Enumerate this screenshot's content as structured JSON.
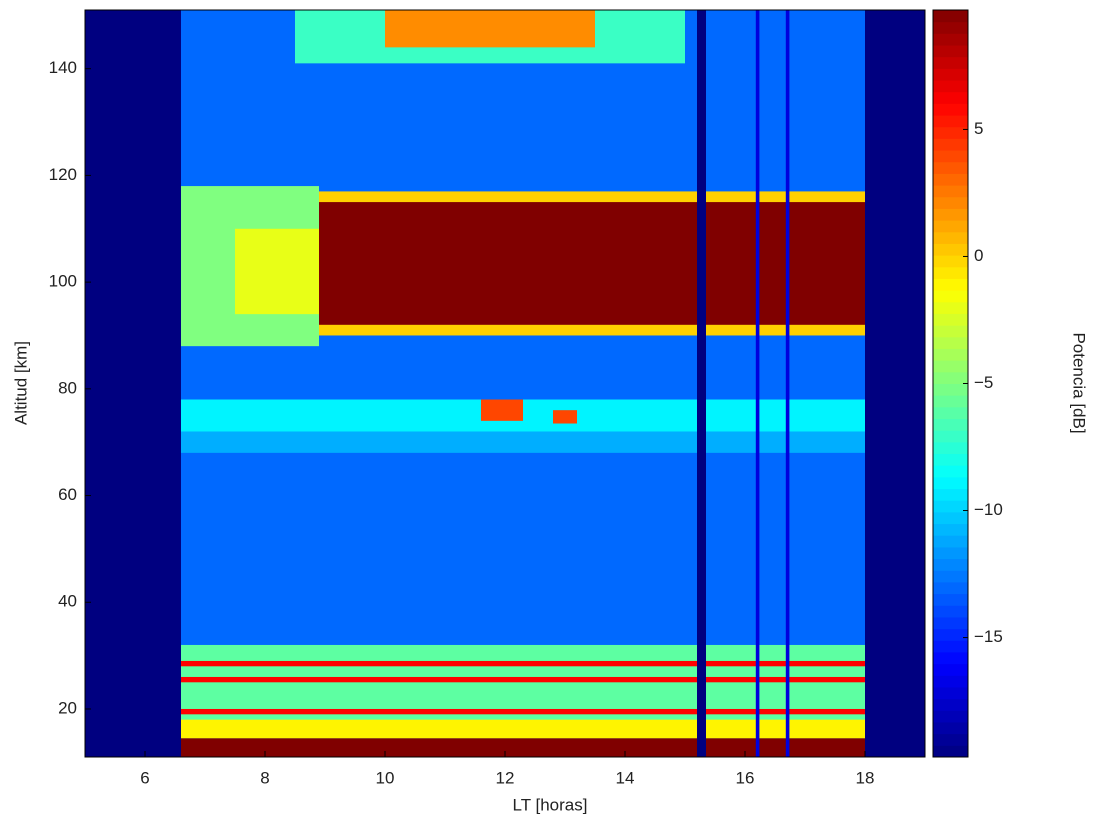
{
  "chart_data": {
    "type": "heatmap",
    "xlabel": "LT [horas]",
    "ylabel": "Altitud [km]",
    "colorbar_label": "Potencia [dB]",
    "xlim": [
      5,
      19
    ],
    "ylim": [
      11,
      151
    ],
    "xticks": [
      6,
      8,
      10,
      12,
      14,
      16,
      18
    ],
    "yticks": [
      20,
      40,
      60,
      80,
      100,
      120,
      140
    ],
    "clim": [
      -19.7,
      9.7
    ],
    "cticks": [
      {
        "value": -15,
        "label": "−15"
      },
      {
        "value": -10,
        "label": "−10"
      },
      {
        "value": -5,
        "label": "−5"
      },
      0,
      5
    ],
    "colormap": "jet",
    "cells": [
      {
        "x": [
          5,
          19
        ],
        "y": [
          11,
          151
        ],
        "value": -19.7
      },
      {
        "x": [
          6.6,
          18
        ],
        "y": [
          11,
          151
        ],
        "value": -13
      },
      {
        "x": [
          8.5,
          15
        ],
        "y": [
          141,
          151
        ],
        "value": -7
      },
      {
        "x": [
          10,
          13.5
        ],
        "y": [
          144,
          151
        ],
        "value": 2
      },
      {
        "x": [
          6.6,
          8.9
        ],
        "y": [
          88,
          118
        ],
        "value": -5
      },
      {
        "x": [
          7.5,
          8.9
        ],
        "y": [
          94,
          110
        ],
        "value": -2
      },
      {
        "x": [
          8.9,
          18
        ],
        "y": [
          90,
          117
        ],
        "value": 0
      },
      {
        "x": [
          8.9,
          18
        ],
        "y": [
          92,
          115
        ],
        "value": 9.7
      },
      {
        "x": [
          6.6,
          18
        ],
        "y": [
          72,
          78
        ],
        "value": -9
      },
      {
        "x": [
          6.6,
          18
        ],
        "y": [
          68,
          72
        ],
        "value": -11
      },
      {
        "x": [
          11.6,
          12.3
        ],
        "y": [
          74,
          78
        ],
        "value": 4
      },
      {
        "x": [
          12.8,
          13.2
        ],
        "y": [
          73.5,
          76
        ],
        "value": 4
      },
      {
        "x": [
          6.6,
          18
        ],
        "y": [
          14.5,
          32
        ],
        "value": -6
      },
      {
        "x": [
          6.6,
          18
        ],
        "y": [
          14.5,
          18
        ],
        "value": -1
      },
      {
        "x": [
          6.6,
          18
        ],
        "y": [
          19,
          20
        ],
        "value": 6
      },
      {
        "x": [
          6.6,
          18
        ],
        "y": [
          25,
          26
        ],
        "value": 6
      },
      {
        "x": [
          6.6,
          18
        ],
        "y": [
          28,
          29
        ],
        "value": 6
      },
      {
        "x": [
          6.6,
          18
        ],
        "y": [
          11,
          14.5
        ],
        "value": 9.7
      },
      {
        "x": [
          15.2,
          15.35
        ],
        "y": [
          11,
          151
        ],
        "value": -19.7
      },
      {
        "x": [
          16.18,
          16.24
        ],
        "y": [
          11,
          151
        ],
        "value": -17
      },
      {
        "x": [
          16.68,
          16.74
        ],
        "y": [
          11,
          151
        ],
        "value": -17
      }
    ]
  }
}
